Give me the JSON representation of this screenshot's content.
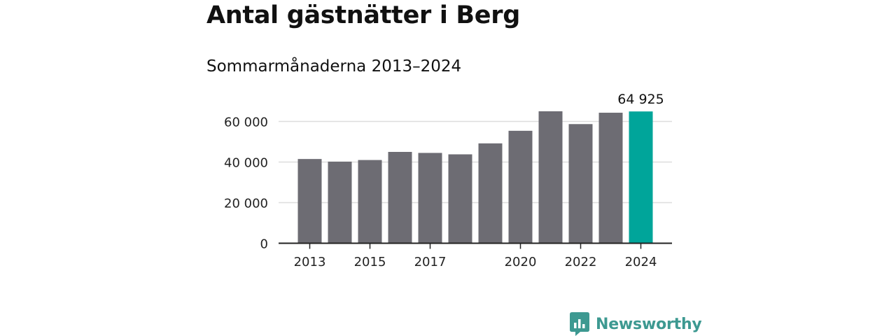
{
  "header": {
    "title": "Antal gästnätter i Berg",
    "subtitle": "Sommarmånaderna 2013–2024"
  },
  "brand": {
    "name": "Newsworthy",
    "color": "#3d9991"
  },
  "chart_data": {
    "type": "bar",
    "title": "Antal gästnätter i Berg",
    "subtitle": "Sommarmånaderna 2013–2024",
    "xlabel": "",
    "ylabel": "",
    "categories": [
      "2013",
      "2014",
      "2015",
      "2016",
      "2017",
      "2018",
      "2019",
      "2020",
      "2021",
      "2022",
      "2023",
      "2024"
    ],
    "x_tick_labels": [
      "2013",
      "2015",
      "2017",
      "2020",
      "2022",
      "2024"
    ],
    "values": [
      41500,
      40200,
      41000,
      45000,
      44500,
      43800,
      49200,
      55400,
      65000,
      58700,
      64300,
      64925
    ],
    "highlight_label": "64 925",
    "highlight_index": 11,
    "y_ticks": [
      0,
      20000,
      40000,
      60000
    ],
    "y_tick_labels": [
      "0",
      "20 000",
      "40 000",
      "60 000"
    ],
    "ylim": [
      0,
      70000
    ],
    "grid": true,
    "legend": "none",
    "colors": {
      "bar": "#6d6c73",
      "highlight": "#00a59a",
      "grid": "#dddddd",
      "axis": "#222222"
    }
  }
}
